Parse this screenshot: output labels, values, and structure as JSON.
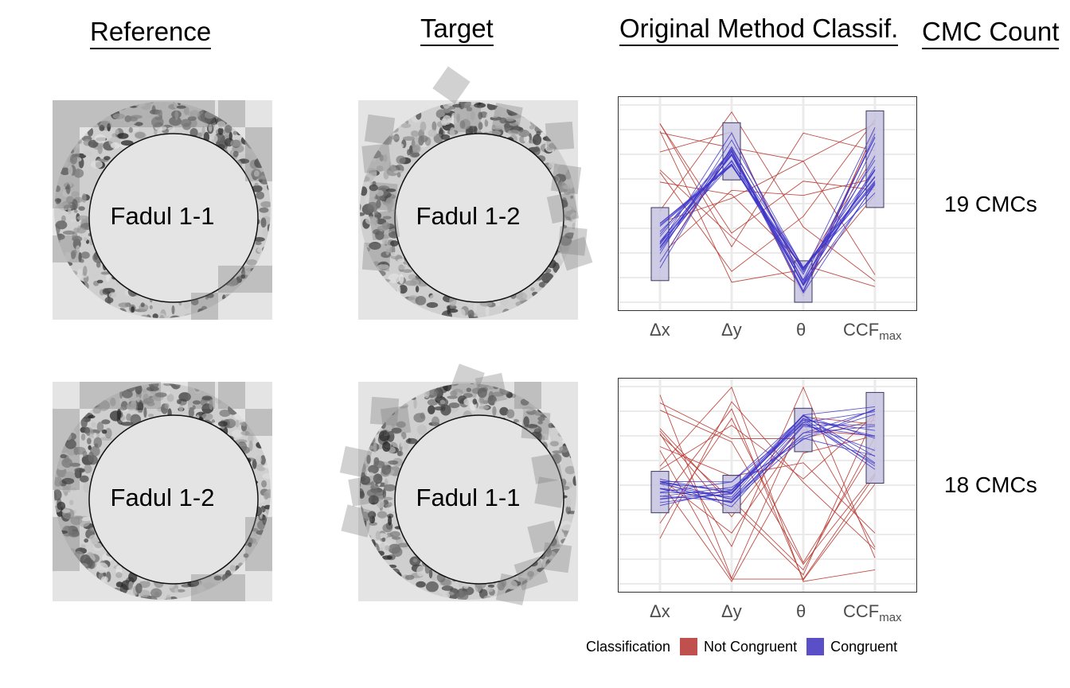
{
  "headers": {
    "reference": "Reference",
    "target": "Target",
    "classif": "Original Method Classif.",
    "cmc": "CMC Count"
  },
  "rows": [
    {
      "reference_label": "Fadul 1-1",
      "target_label": "Fadul 1-2",
      "cmc_count": "19 CMCs",
      "chart": {
        "type": "parallel-coordinates",
        "axes": [
          "Δx",
          "Δy",
          "θ",
          "CCF_max"
        ],
        "congruent_boxes": [
          [
            0.52,
            0.89
          ],
          [
            0.09,
            0.38
          ],
          [
            0.79,
            1.0
          ],
          [
            0.03,
            0.52
          ]
        ],
        "congruent_lines": 19,
        "not_congruent_lines": 12
      }
    },
    {
      "reference_label": "Fadul 1-2",
      "target_label": "Fadul 1-1",
      "cmc_count": "18 CMCs",
      "chart": {
        "type": "parallel-coordinates",
        "axes": [
          "Δx",
          "Δy",
          "θ",
          "CCF_max"
        ],
        "congruent_boxes": [
          [
            0.43,
            0.64
          ],
          [
            0.45,
            0.64
          ],
          [
            0.11,
            0.33
          ],
          [
            0.03,
            0.49
          ]
        ],
        "congruent_lines": 18,
        "not_congruent_lines": 16
      }
    }
  ],
  "axis_labels": {
    "dx": "Δx",
    "dy": "Δy",
    "theta": "θ",
    "ccf": "CCF",
    "ccf_sub": "max"
  },
  "legend": {
    "title": "Classification",
    "not_congruent": "Not Congruent",
    "congruent": "Congruent",
    "not_congruent_color": "#c0504d",
    "congruent_color": "#5b4fc8"
  },
  "colors": {
    "red": "#b83a32",
    "blue": "#3d35c8",
    "box_fill": "#c5c3e0",
    "panel_bg": "#e4e4e4"
  }
}
